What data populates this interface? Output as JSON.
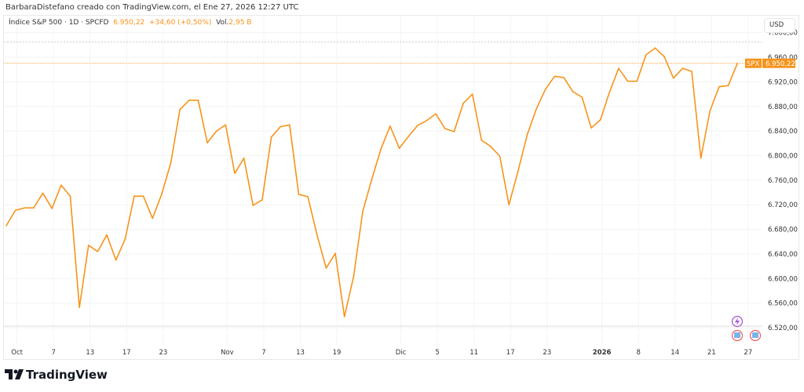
{
  "credit": "BarbaraDistefano creado con TradingView.com, el Ene 27, 2026 12:27 UTC",
  "legend": {
    "symbol": "Índice S&P 500 · 1D · SPCFD",
    "price": "6.950,22",
    "change": "+34,60 (+0,50%)",
    "vol_label": "Vol.",
    "vol": "2,95 B"
  },
  "currency": "USD",
  "price_tag": {
    "ticker": "SPX",
    "value": "6.950,22"
  },
  "logo": "TradingView",
  "colors": {
    "line": "#f7931a",
    "tag": "#f7931a"
  },
  "chart_data": {
    "type": "line",
    "ylim": [
      6500,
      7010
    ],
    "y_ticks": [
      6520,
      6560,
      6600,
      6640,
      6680,
      6720,
      6760,
      6800,
      6840,
      6880,
      6920,
      6960,
      7000
    ],
    "y_tick_labels": [
      "6.520,00",
      "6.560,00",
      "6.600,00",
      "6.640,00",
      "6.680,00",
      "6.720,00",
      "6.760,00",
      "6.800,00",
      "6.840,00",
      "6.880,00",
      "6.920,00",
      "6.960,00",
      "7.000,00"
    ],
    "x_tick_labels": [
      {
        "label": "Oct",
        "index": 1
      },
      {
        "label": "7",
        "index": 5
      },
      {
        "label": "13",
        "index": 9
      },
      {
        "label": "17",
        "index": 13
      },
      {
        "label": "23",
        "index": 17
      },
      {
        "label": "Nov",
        "index": 24
      },
      {
        "label": "7",
        "index": 28
      },
      {
        "label": "13",
        "index": 32
      },
      {
        "label": "19",
        "index": 36
      },
      {
        "label": "Dic",
        "index": 43
      },
      {
        "label": "5",
        "index": 47
      },
      {
        "label": "11",
        "index": 51
      },
      {
        "label": "17",
        "index": 55
      },
      {
        "label": "23",
        "index": 59
      },
      {
        "label": "2026",
        "index": 65,
        "bold": true
      },
      {
        "label": "8",
        "index": 69
      },
      {
        "label": "14",
        "index": 73
      },
      {
        "label": "21",
        "index": 77
      },
      {
        "label": "27",
        "index": 81
      }
    ],
    "values": [
      6686,
      6711,
      6715,
      6715,
      6739,
      6714,
      6752,
      6734,
      6553,
      6654,
      6644,
      6671,
      6630,
      6664,
      6734,
      6734,
      6698,
      6737,
      6788,
      6875,
      6890,
      6890,
      6821,
      6840,
      6850,
      6771,
      6796,
      6719,
      6728,
      6830,
      6847,
      6850,
      6737,
      6733,
      6671,
      6617,
      6641,
      6538,
      6603,
      6709,
      6762,
      6811,
      6848,
      6812,
      6831,
      6849,
      6857,
      6868,
      6844,
      6839,
      6885,
      6900,
      6825,
      6815,
      6799,
      6720,
      6775,
      6834,
      6876,
      6908,
      6929,
      6927,
      6904,
      6895,
      6845,
      6858,
      6903,
      6942,
      6921,
      6921,
      6964,
      6975,
      6961,
      6926,
      6942,
      6937,
      6796,
      6873,
      6912,
      6914,
      6950.22
    ]
  }
}
